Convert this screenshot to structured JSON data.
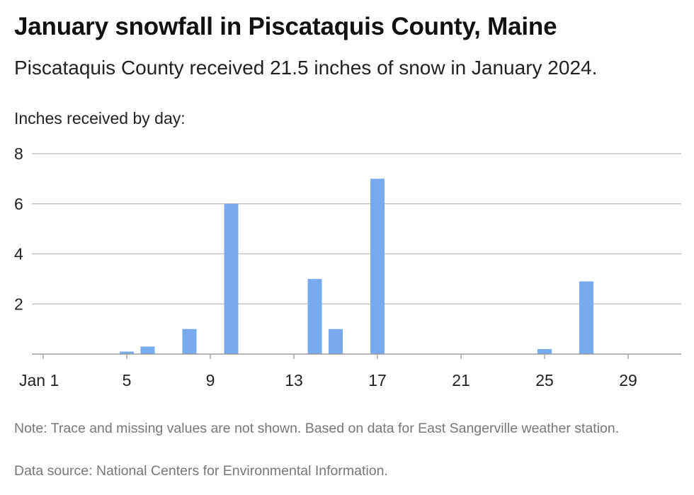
{
  "header": {
    "title": "January snowfall in Piscataquis County, Maine",
    "subtitle": "Piscataquis County received 21.5 inches of snow in January 2024.",
    "axis_caption": "Inches received by day:"
  },
  "footer": {
    "note": "Note: Trace and missing values are not shown. Based on data for East Sangerville weather station.",
    "source": "Data source: National Centers for Environmental Information."
  },
  "chart_data": {
    "type": "bar",
    "title": "January snowfall in Piscataquis County, Maine",
    "subtitle": "Piscataquis County received 21.5 inches of snow in January 2024.",
    "ylabel": "Inches received by day:",
    "xlabel": "",
    "x_day_range": [
      1,
      31
    ],
    "ylim": [
      0,
      8
    ],
    "y_ticks": [
      2,
      4,
      6,
      8
    ],
    "x_ticks": [
      {
        "day": 1,
        "label": "Jan 1"
      },
      {
        "day": 5,
        "label": "5"
      },
      {
        "day": 9,
        "label": "9"
      },
      {
        "day": 13,
        "label": "13"
      },
      {
        "day": 17,
        "label": "17"
      },
      {
        "day": 21,
        "label": "21"
      },
      {
        "day": 25,
        "label": "25"
      },
      {
        "day": 29,
        "label": "29"
      }
    ],
    "grid": true,
    "bar_color": "#7aaaee",
    "points": [
      {
        "day": 5,
        "value": 0.1
      },
      {
        "day": 6,
        "value": 0.3
      },
      {
        "day": 8,
        "value": 1.0
      },
      {
        "day": 10,
        "value": 6.0
      },
      {
        "day": 14,
        "value": 3.0
      },
      {
        "day": 15,
        "value": 1.0
      },
      {
        "day": 17,
        "value": 7.0
      },
      {
        "day": 25,
        "value": 0.2
      },
      {
        "day": 27,
        "value": 2.9
      }
    ]
  }
}
